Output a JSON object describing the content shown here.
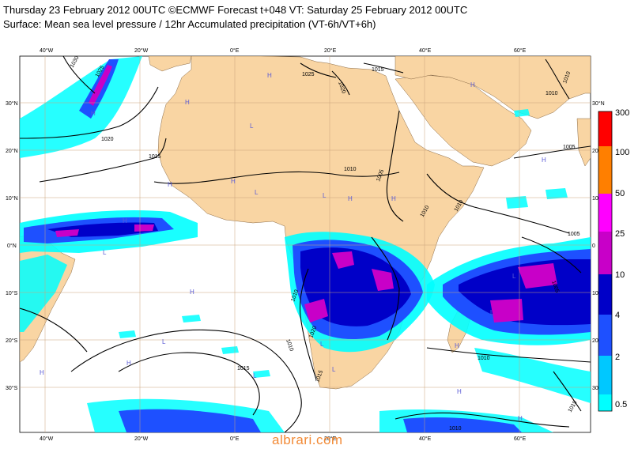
{
  "header": {
    "line1": "Thursday 23 February 2012 00UTC ©ECMWF Forecast t+048 VT: Saturday 25 February 2012 00UTC",
    "line2": "Surface: Mean sea level pressure / 12hr Accumulated precipitation (VT-6h/VT+6h)"
  },
  "colors": {
    "land": "#f9d5a3",
    "ocean": "#ffffff",
    "grid": "#c9a37a",
    "isobar": "#000000",
    "hl_marker": "#5b5bd6"
  },
  "axes": {
    "lon_labels": [
      "40°W",
      "20°W",
      "0°E",
      "20°E",
      "40°E",
      "60°E"
    ],
    "lat_labels_left": [
      "30°N",
      "20°N",
      "10°N",
      "0°N",
      "10°S",
      "20°S",
      "30°S"
    ],
    "lat_labels_right": [
      "30°N",
      "20",
      "10",
      "0",
      "10",
      "20",
      "30"
    ]
  },
  "colorbar": {
    "title": "",
    "bins": [
      {
        "label": "300",
        "color": "#ff0000"
      },
      {
        "label": "100",
        "color": "#ff7f00"
      },
      {
        "label": "50",
        "color": "#ff00ff"
      },
      {
        "label": "25",
        "color": "#c800c8"
      },
      {
        "label": "10",
        "color": "#0000c8"
      },
      {
        "label": "4",
        "color": "#1e50ff"
      },
      {
        "label": "2",
        "color": "#00c8ff"
      },
      {
        "label": "0.5",
        "color": "#00ffff"
      }
    ]
  },
  "isobar_labels": [
    "1030",
    "1025",
    "1020",
    "1015",
    "1010",
    "1005",
    "1025",
    "1020",
    "1015",
    "1010",
    "1010",
    "1005",
    "1010",
    "1005",
    "1010",
    "1015",
    "1010",
    "1010",
    "1015",
    "1020",
    "1010",
    "1005",
    "1010",
    "1015"
  ],
  "pressure_markers": [
    "H",
    "H",
    "H",
    "H",
    "H",
    "H",
    "L",
    "L",
    "L",
    "L",
    "L",
    "H",
    "H",
    "L",
    "H",
    "H",
    "L",
    "H",
    "H",
    "H",
    "L",
    "L",
    "H",
    "H",
    "H",
    "L"
  ],
  "watermark": "albrari.com"
}
